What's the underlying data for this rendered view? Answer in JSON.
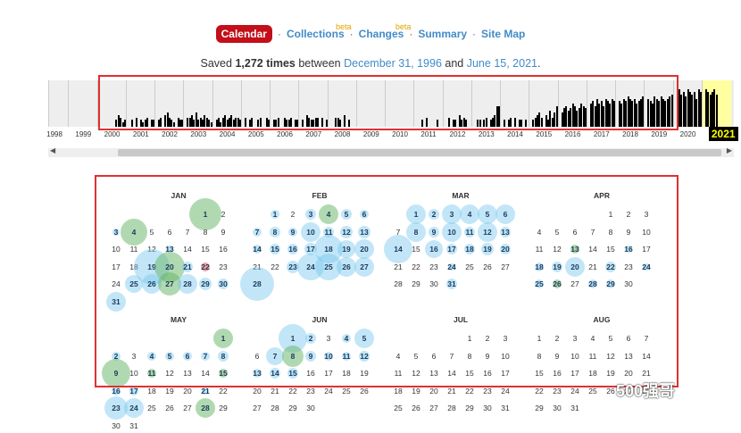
{
  "nav": {
    "items": [
      {
        "label": "Calendar",
        "active": true,
        "beta": ""
      },
      {
        "label": "Collections",
        "active": false,
        "beta": "beta"
      },
      {
        "label": "Changes",
        "active": false,
        "beta": "beta"
      },
      {
        "label": "Summary",
        "active": false,
        "beta": ""
      },
      {
        "label": "Site Map",
        "active": false,
        "beta": ""
      }
    ],
    "separator": "·"
  },
  "saved": {
    "prefix": "Saved",
    "count": "1,272 times",
    "between": "between",
    "start": "December 31, 1996",
    "and": "and",
    "end": "June 15, 2021",
    "suffix": "."
  },
  "histogram": {
    "years": [
      "1998",
      "1999",
      "2000",
      "2001",
      "2002",
      "2003",
      "2004",
      "2005",
      "2006",
      "2007",
      "2008",
      "2009",
      "2010",
      "2011",
      "2012",
      "2013",
      "2014",
      "2015",
      "2016",
      "2017",
      "2018",
      "2019",
      "2020",
      "2021"
    ],
    "selected_year": "2021",
    "activity": [
      [
        0,
        0,
        0,
        0,
        0,
        0,
        0,
        0,
        0,
        0,
        0,
        0
      ],
      [
        0,
        0,
        0,
        0,
        0,
        0,
        0,
        0,
        0,
        0,
        0,
        0
      ],
      [
        0,
        0,
        0,
        0,
        0,
        0,
        0,
        3,
        5,
        4,
        2,
        3
      ],
      [
        0,
        3,
        0,
        4,
        0,
        3,
        2,
        3,
        4,
        0,
        3,
        3
      ],
      [
        3,
        4,
        0,
        5,
        6,
        4,
        3,
        2,
        0,
        4,
        3,
        3
      ],
      [
        4,
        4,
        5,
        3,
        6,
        3,
        4,
        3,
        5,
        4,
        3,
        2
      ],
      [
        3,
        4,
        2,
        4,
        5,
        3,
        4,
        5,
        3,
        4,
        4,
        3
      ],
      [
        4,
        0,
        3,
        4,
        0,
        0,
        3,
        4,
        0,
        0,
        4,
        3
      ],
      [
        3,
        3,
        4,
        0,
        0,
        4,
        3,
        3,
        4,
        0,
        3,
        3
      ],
      [
        3,
        0,
        5,
        4,
        3,
        3,
        4,
        4,
        0,
        4,
        0,
        3
      ],
      [
        0,
        0,
        4,
        4,
        3,
        0,
        5,
        0,
        3,
        0,
        0,
        0
      ],
      [
        0,
        0,
        0,
        0,
        0,
        0,
        0,
        0,
        0,
        0,
        0,
        0
      ],
      [
        0,
        0,
        0,
        0,
        0,
        0,
        0,
        0,
        0,
        0,
        0,
        0
      ],
      [
        0,
        0,
        3,
        0,
        4,
        0,
        0,
        0,
        0,
        3,
        0,
        0
      ],
      [
        0,
        4,
        0,
        3,
        3,
        0,
        5,
        3,
        4,
        3,
        0,
        0
      ],
      [
        0,
        3,
        3,
        0,
        3,
        4,
        0,
        3,
        4,
        5,
        9,
        9
      ],
      [
        3,
        0,
        3,
        4,
        0,
        4,
        0,
        3,
        3,
        0,
        3,
        0
      ],
      [
        3,
        4,
        5,
        6,
        4,
        0,
        5,
        3,
        7,
        4,
        6,
        9
      ],
      [
        6,
        8,
        9,
        7,
        8,
        10,
        9,
        7,
        8,
        10,
        9,
        8
      ],
      [
        10,
        11,
        9,
        12,
        10,
        11,
        9,
        12,
        11,
        10,
        12,
        11
      ],
      [
        11,
        10,
        12,
        11,
        13,
        12,
        11,
        12,
        10,
        11,
        12,
        13
      ],
      [
        12,
        11,
        10,
        13,
        12,
        11,
        13,
        12,
        11,
        12,
        13,
        14
      ],
      [
        15,
        16,
        14,
        15,
        13,
        16,
        15,
        14,
        15,
        12,
        16,
        15
      ],
      [
        16,
        15,
        14,
        15,
        16,
        14,
        0,
        0,
        0,
        0,
        0,
        0
      ]
    ]
  },
  "calendar": {
    "months": [
      {
        "name": "JAN",
        "start": 5,
        "days": 31
      },
      {
        "name": "FEB",
        "start": 1,
        "days": 28
      },
      {
        "name": "MAR",
        "start": 1,
        "days": 31
      },
      {
        "name": "APR",
        "start": 4,
        "days": 30
      },
      {
        "name": "MAY",
        "start": 6,
        "days": 31
      },
      {
        "name": "JUN",
        "start": 2,
        "days": 30
      },
      {
        "name": "JUL",
        "start": 4,
        "days": 31
      },
      {
        "name": "AUG",
        "start": 0,
        "days": 31
      }
    ],
    "captures": [
      [
        [
          1,
          "g",
          36
        ],
        [
          3,
          "b",
          8
        ],
        [
          4,
          "g",
          30
        ],
        [
          13,
          "b",
          8
        ],
        [
          19,
          "b",
          40
        ],
        [
          20,
          "g",
          34
        ],
        [
          21,
          "b",
          12
        ],
        [
          22,
          "r",
          10
        ],
        [
          25,
          "b",
          20
        ],
        [
          26,
          "b",
          22
        ],
        [
          27,
          "g",
          26
        ],
        [
          28,
          "b",
          22
        ],
        [
          29,
          "b",
          14
        ],
        [
          30,
          "b",
          12
        ],
        [
          31,
          "b",
          22
        ]
      ],
      [
        [
          1,
          "b",
          10
        ],
        [
          3,
          "b",
          12
        ],
        [
          4,
          "g",
          22
        ],
        [
          5,
          "b",
          12
        ],
        [
          6,
          "b",
          10
        ],
        [
          7,
          "b",
          10
        ],
        [
          8,
          "b",
          12
        ],
        [
          9,
          "b",
          10
        ],
        [
          10,
          "b",
          22
        ],
        [
          11,
          "b",
          12
        ],
        [
          12,
          "b",
          14
        ],
        [
          13,
          "b",
          14
        ],
        [
          14,
          "b",
          10
        ],
        [
          15,
          "b",
          12
        ],
        [
          16,
          "b",
          12
        ],
        [
          17,
          "b",
          14
        ],
        [
          18,
          "b",
          32
        ],
        [
          19,
          "b",
          20
        ],
        [
          20,
          "b",
          22
        ],
        [
          23,
          "b",
          14
        ],
        [
          24,
          "b",
          30
        ],
        [
          25,
          "b",
          30
        ],
        [
          26,
          "b",
          22
        ],
        [
          27,
          "b",
          22
        ],
        [
          28,
          "b",
          38
        ]
      ],
      [
        [
          1,
          "b",
          22
        ],
        [
          2,
          "b",
          12
        ],
        [
          3,
          "b",
          22
        ],
        [
          4,
          "b",
          22
        ],
        [
          5,
          "b",
          22
        ],
        [
          6,
          "b",
          22
        ],
        [
          8,
          "b",
          22
        ],
        [
          9,
          "b",
          12
        ],
        [
          10,
          "b",
          22
        ],
        [
          11,
          "b",
          12
        ],
        [
          12,
          "b",
          22
        ],
        [
          13,
          "b",
          12
        ],
        [
          14,
          "b",
          32
        ],
        [
          16,
          "b",
          20
        ],
        [
          17,
          "b",
          12
        ],
        [
          18,
          "b",
          12
        ],
        [
          19,
          "b",
          14
        ],
        [
          20,
          "b",
          12
        ],
        [
          24,
          "b",
          8
        ],
        [
          31,
          "b",
          12
        ]
      ],
      [
        [
          13,
          "g",
          10
        ],
        [
          16,
          "b",
          8
        ],
        [
          18,
          "b",
          10
        ],
        [
          19,
          "b",
          12
        ],
        [
          20,
          "b",
          22
        ],
        [
          22,
          "b",
          12
        ],
        [
          24,
          "b",
          8
        ],
        [
          25,
          "b",
          10
        ],
        [
          26,
          "g",
          10
        ],
        [
          28,
          "b",
          10
        ],
        [
          29,
          "b",
          10
        ]
      ],
      [
        [
          1,
          "g",
          22
        ],
        [
          2,
          "b",
          10
        ],
        [
          4,
          "b",
          10
        ],
        [
          5,
          "b",
          10
        ],
        [
          6,
          "b",
          10
        ],
        [
          7,
          "b",
          10
        ],
        [
          8,
          "b",
          12
        ],
        [
          9,
          "g",
          32
        ],
        [
          11,
          "g",
          10
        ],
        [
          15,
          "g",
          10
        ],
        [
          16,
          "b",
          10
        ],
        [
          17,
          "b",
          10
        ],
        [
          21,
          "b",
          8
        ],
        [
          23,
          "b",
          26
        ],
        [
          24,
          "b",
          22
        ],
        [
          28,
          "g",
          22
        ]
      ],
      [
        [
          1,
          "b",
          32
        ],
        [
          2,
          "b",
          12
        ],
        [
          4,
          "b",
          10
        ],
        [
          5,
          "b",
          22
        ],
        [
          7,
          "b",
          20
        ],
        [
          8,
          "g",
          24
        ],
        [
          9,
          "b",
          12
        ],
        [
          10,
          "b",
          10
        ],
        [
          11,
          "b",
          10
        ],
        [
          12,
          "b",
          12
        ],
        [
          13,
          "b",
          10
        ],
        [
          14,
          "b",
          12
        ],
        [
          15,
          "b",
          12
        ]
      ],
      [],
      []
    ]
  },
  "watermark": "500强哥"
}
